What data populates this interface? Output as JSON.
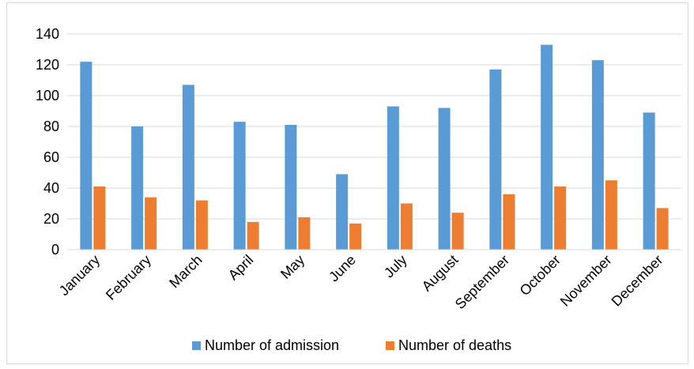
{
  "chart_data": {
    "type": "bar",
    "categories": [
      "January",
      "February",
      "March",
      "April",
      "May",
      "June",
      "July",
      "August",
      "September",
      "October",
      "November",
      "December"
    ],
    "series": [
      {
        "name": "Number of admission",
        "color": "#5b9bd5",
        "values": [
          122,
          80,
          107,
          83,
          81,
          49,
          93,
          92,
          117,
          133,
          123,
          89
        ]
      },
      {
        "name": "Number of deaths",
        "color": "#ed7d31",
        "values": [
          41,
          34,
          32,
          18,
          21,
          17,
          30,
          24,
          36,
          41,
          45,
          27
        ]
      }
    ],
    "title": "",
    "xlabel": "",
    "ylabel": "",
    "ylim": [
      0,
      140
    ],
    "yticks": [
      0,
      20,
      40,
      60,
      80,
      100,
      120,
      140
    ],
    "grid": true,
    "legend_position": "bottom",
    "gridline_color": "#d9d9d9"
  }
}
